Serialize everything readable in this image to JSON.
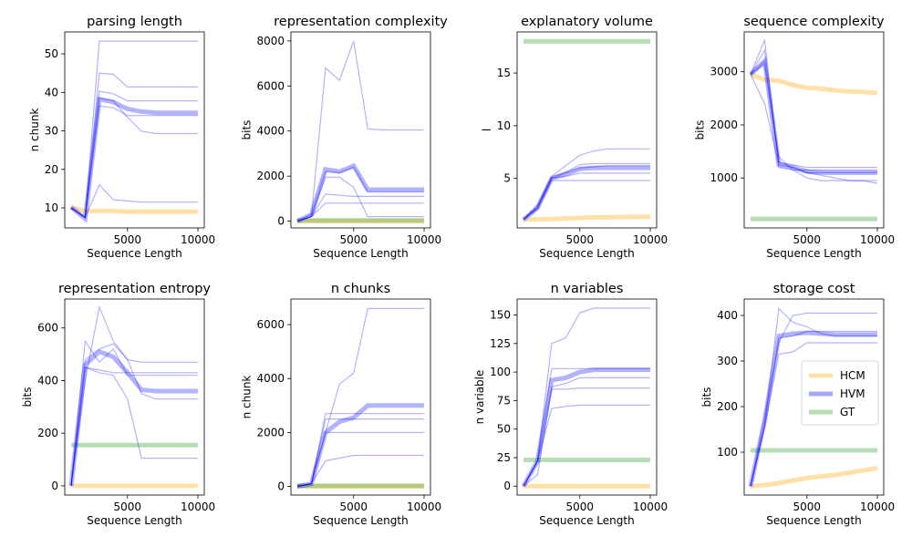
{
  "colors": {
    "HCM": "#FFA500",
    "HVM": "#0000FF",
    "GT": "#2CA02C"
  },
  "chart_data": [
    {
      "type": "line",
      "title": "parsing length",
      "xlabel": "Sequence Length",
      "ylabel": "n chunk",
      "xlim": [
        550,
        10450
      ],
      "ylim": [
        4.8,
        55.7
      ],
      "xticks": [
        5000,
        10000
      ],
      "yticks": [
        10,
        20,
        30,
        40,
        50
      ],
      "x": [
        1000,
        2000,
        3000,
        4000,
        5000,
        6000,
        7000,
        8000,
        9000,
        10000
      ],
      "runs": [
        [
          10,
          7.5,
          53.3,
          53.3,
          53.3,
          53.3,
          53.3,
          53.3,
          53.3,
          53.3
        ],
        [
          10,
          7.5,
          45,
          44.7,
          41.4,
          41.4,
          41.4,
          41.4,
          41.4,
          41.4
        ],
        [
          10,
          7.5,
          40.3,
          39.6,
          37.8,
          37.8,
          37.8,
          37.8,
          37.8,
          37.8
        ],
        [
          10,
          7.5,
          38.5,
          37.8,
          33.5,
          29.9,
          29.3,
          29.3,
          29.3,
          29.3
        ],
        [
          10,
          7.5,
          16,
          12.1,
          11.8,
          11.5,
          11.5,
          11.5,
          11.5,
          11.5
        ],
        [
          10,
          7.5,
          36.5,
          36,
          34,
          34,
          34,
          34,
          34,
          34
        ]
      ],
      "series": [
        {
          "name": "HVM",
          "values": [
            10.2,
            7.2,
            38.2,
            37.5,
            35.7,
            35,
            34.7,
            34.7,
            34.7,
            34.7
          ]
        },
        {
          "name": "HCM",
          "values": [
            10,
            9.2,
            9.2,
            9.2,
            9,
            9,
            9,
            9,
            9,
            9
          ]
        }
      ]
    },
    {
      "type": "line",
      "title": "representation complexity",
      "xlabel": "Sequence Length",
      "ylabel": "bits",
      "xlim": [
        550,
        10450
      ],
      "ylim": [
        -300,
        8400
      ],
      "xticks": [
        5000,
        10000
      ],
      "yticks": [
        0,
        2000,
        4000,
        6000,
        8000
      ],
      "x": [
        1000,
        2000,
        3000,
        4000,
        5000,
        6000,
        7000,
        8000,
        9000,
        10000
      ],
      "runs": [
        [
          0,
          200,
          6800,
          6250,
          8000,
          4100,
          4050,
          4050,
          4050,
          4050
        ],
        [
          0,
          200,
          1950,
          1950,
          1500,
          200,
          200,
          200,
          200,
          200
        ],
        [
          0,
          200,
          1200,
          1150,
          1100,
          1100,
          1100,
          1100,
          1100,
          1100
        ],
        [
          0,
          200,
          800,
          800,
          800,
          800,
          800,
          800,
          800,
          800
        ],
        [
          0,
          300,
          2200,
          2150,
          2400,
          1300,
          1300,
          1300,
          1300,
          1300
        ]
      ],
      "series": [
        {
          "name": "HVM",
          "values": [
            0,
            300,
            2300,
            2200,
            2450,
            1400,
            1400,
            1400,
            1400,
            1400
          ]
        },
        {
          "name": "HCM",
          "values": [
            0,
            0,
            0,
            0,
            0,
            0,
            0,
            0,
            0,
            0
          ]
        },
        {
          "name": "GT",
          "values": [
            30,
            30,
            30,
            30,
            30,
            30,
            30,
            30,
            30,
            30
          ]
        }
      ]
    },
    {
      "type": "line",
      "title": "explanatory volume",
      "xlabel": "Sequence Length",
      "ylabel": "l",
      "xlim": [
        550,
        10450
      ],
      "ylim": [
        0.3,
        18.9
      ],
      "xticks": [
        5000,
        10000
      ],
      "yticks": [
        5,
        10,
        15
      ],
      "x": [
        1000,
        2000,
        3000,
        4000,
        5000,
        6000,
        7000,
        8000,
        9000,
        10000
      ],
      "runs": [
        [
          1.1,
          2.5,
          5.2,
          6.2,
          7.2,
          7.6,
          7.8,
          7.8,
          7.8,
          7.8
        ],
        [
          1.1,
          2.3,
          5.1,
          5.6,
          6.3,
          6.4,
          6.4,
          6.4,
          6.4,
          6.4
        ],
        [
          1.1,
          2.2,
          5,
          5.2,
          5.5,
          5.5,
          5.5,
          5.5,
          5.5,
          5.5
        ],
        [
          1.1,
          2.1,
          4.8,
          4.8,
          4.8,
          4.8,
          4.8,
          4.8,
          4.8,
          4.8
        ],
        [
          1.1,
          2.2,
          5,
          5.5,
          6,
          6.1,
          6.2,
          6.2,
          6.2,
          6.2
        ]
      ],
      "series": [
        {
          "name": "HVM",
          "values": [
            1.1,
            2.2,
            5,
            5.4,
            5.9,
            6,
            6,
            6,
            6,
            6
          ]
        },
        {
          "name": "HCM",
          "values": [
            1.1,
            1.1,
            1.15,
            1.2,
            1.25,
            1.3,
            1.32,
            1.34,
            1.35,
            1.36
          ]
        },
        {
          "name": "GT",
          "values": [
            18,
            18,
            18,
            18,
            18,
            18,
            18,
            18,
            18,
            18
          ]
        }
      ]
    },
    {
      "type": "line",
      "title": "sequence complexity",
      "xlabel": "Sequence Length",
      "ylabel": "bits",
      "xlim": [
        550,
        10450
      ],
      "ylim": [
        60,
        3750
      ],
      "xticks": [
        5000,
        10000
      ],
      "yticks": [
        1000,
        2000,
        3000
      ],
      "x": [
        1000,
        2000,
        3000,
        4000,
        5000,
        6000,
        7000,
        8000,
        9000,
        10000
      ],
      "runs": [
        [
          2950,
          3600,
          1200,
          1150,
          1000,
          950,
          950,
          950,
          950,
          950
        ],
        [
          2950,
          3400,
          1300,
          1250,
          1200,
          1200,
          1200,
          1200,
          1200,
          1200
        ],
        [
          2950,
          2400,
          1250,
          1200,
          1100,
          1050,
          1000,
          950,
          950,
          900
        ],
        [
          2950,
          3200,
          1400,
          1150,
          1150,
          1150,
          1150,
          1150,
          1150,
          1150
        ],
        [
          2950,
          3150,
          1300,
          1200,
          1100,
          1100,
          1100,
          1100,
          1100,
          1100
        ]
      ],
      "series": [
        {
          "name": "HVM",
          "values": [
            2950,
            3200,
            1250,
            1200,
            1120,
            1100,
            1100,
            1100,
            1100,
            1100
          ]
        },
        {
          "name": "HCM",
          "values": [
            2950,
            2850,
            2830,
            2750,
            2700,
            2680,
            2650,
            2630,
            2620,
            2600
          ]
        },
        {
          "name": "GT",
          "values": [
            230,
            230,
            230,
            230,
            230,
            230,
            230,
            230,
            230,
            230
          ]
        }
      ]
    },
    {
      "type": "line",
      "title": "representation entropy",
      "xlabel": "Sequence Length",
      "ylabel": "bits",
      "xlim": [
        550,
        10450
      ],
      "ylim": [
        -35,
        710
      ],
      "xticks": [
        5000,
        10000
      ],
      "yticks": [
        0,
        200,
        400,
        600
      ],
      "x": [
        1000,
        2000,
        3000,
        4000,
        5000,
        6000,
        7000,
        8000,
        9000,
        10000
      ],
      "runs": [
        [
          0,
          400,
          680,
          550,
          480,
          470,
          470,
          470,
          470,
          470
        ],
        [
          0,
          550,
          470,
          520,
          420,
          420,
          420,
          420,
          420,
          420
        ],
        [
          0,
          450,
          430,
          420,
          330,
          105,
          105,
          105,
          105,
          105
        ],
        [
          0,
          480,
          520,
          540,
          480,
          350,
          330,
          330,
          330,
          330
        ],
        [
          0,
          450,
          440,
          430,
          430,
          430,
          430,
          430,
          430,
          430
        ]
      ],
      "series": [
        {
          "name": "HVM",
          "values": [
            0,
            460,
            510,
            490,
            430,
            365,
            360,
            360,
            360,
            360
          ]
        },
        {
          "name": "HCM",
          "values": [
            0,
            0,
            0,
            0,
            0,
            0,
            0,
            0,
            0,
            0
          ]
        },
        {
          "name": "GT",
          "values": [
            155,
            155,
            155,
            155,
            155,
            155,
            155,
            155,
            155,
            155
          ]
        }
      ]
    },
    {
      "type": "line",
      "title": "n chunks",
      "xlabel": "Sequence Length",
      "ylabel": "n chunk",
      "xlim": [
        550,
        10450
      ],
      "ylim": [
        -320,
        6950
      ],
      "xticks": [
        5000,
        10000
      ],
      "yticks": [
        0,
        2000,
        4000,
        6000
      ],
      "x": [
        1000,
        2000,
        3000,
        4000,
        5000,
        6000,
        7000,
        8000,
        9000,
        10000
      ],
      "runs": [
        [
          0,
          100,
          2000,
          3800,
          4200,
          6600,
          6600,
          6600,
          6600,
          6600
        ],
        [
          0,
          100,
          2700,
          2700,
          2700,
          2700,
          2700,
          2700,
          2700,
          2700
        ],
        [
          0,
          100,
          2500,
          2500,
          2500,
          2500,
          2500,
          2500,
          2500,
          2500
        ],
        [
          0,
          100,
          2000,
          2000,
          2000,
          2000,
          2000,
          2000,
          2000,
          2000
        ],
        [
          0,
          100,
          950,
          1050,
          1150,
          1150,
          1150,
          1150,
          1150,
          1150
        ]
      ],
      "series": [
        {
          "name": "HVM",
          "values": [
            0,
            100,
            2000,
            2400,
            2550,
            3000,
            3000,
            3000,
            3000,
            3000
          ]
        },
        {
          "name": "HCM",
          "values": [
            0,
            0,
            0,
            0,
            0,
            0,
            0,
            0,
            0,
            0
          ]
        },
        {
          "name": "GT",
          "values": [
            20,
            20,
            20,
            20,
            20,
            20,
            20,
            20,
            20,
            20
          ]
        }
      ]
    },
    {
      "type": "line",
      "title": "n variables",
      "xlabel": "Sequence Length",
      "ylabel": "n variable",
      "xlim": [
        550,
        10450
      ],
      "ylim": [
        -7.8,
        164
      ],
      "xticks": [
        5000,
        10000
      ],
      "yticks": [
        0,
        25,
        50,
        75,
        100,
        125,
        150
      ],
      "x": [
        1000,
        2000,
        3000,
        4000,
        5000,
        6000,
        7000,
        8000,
        9000,
        10000
      ],
      "runs": [
        [
          0,
          22,
          125,
          130,
          152,
          156,
          156,
          156,
          156,
          156
        ],
        [
          0,
          22,
          103,
          103,
          103,
          103,
          103,
          103,
          103,
          103
        ],
        [
          0,
          22,
          87,
          90,
          95,
          95,
          95,
          95,
          95,
          95
        ],
        [
          0,
          22,
          68,
          70,
          71,
          71,
          71,
          71,
          71,
          71
        ],
        [
          0,
          10,
          85,
          85,
          86,
          86,
          86,
          86,
          86,
          86
        ]
      ],
      "series": [
        {
          "name": "HVM",
          "values": [
            0,
            22,
            93,
            95,
            100,
            102,
            102,
            102,
            102,
            102
          ]
        },
        {
          "name": "HCM",
          "values": [
            0,
            0,
            0,
            0,
            0,
            0,
            0,
            0,
            0,
            0
          ]
        },
        {
          "name": "GT",
          "values": [
            23,
            23,
            23,
            23,
            23,
            23,
            23,
            23,
            23,
            23
          ]
        }
      ]
    },
    {
      "type": "line",
      "title": "storage cost",
      "xlabel": "Sequence Length",
      "ylabel": "bits",
      "xlim": [
        550,
        10450
      ],
      "ylim": [
        6,
        436
      ],
      "xticks": [
        5000,
        10000
      ],
      "yticks": [
        100,
        200,
        300,
        400
      ],
      "legend": {
        "position": "right",
        "entries": [
          "HCM",
          "HVM",
          "GT"
        ]
      },
      "x": [
        1000,
        2000,
        3000,
        4000,
        5000,
        6000,
        7000,
        8000,
        9000,
        10000
      ],
      "runs": [
        [
          25,
          160,
          415,
          385,
          375,
          360,
          355,
          355,
          355,
          355
        ],
        [
          25,
          180,
          340,
          400,
          405,
          405,
          405,
          405,
          405,
          405
        ],
        [
          25,
          155,
          315,
          320,
          340,
          340,
          340,
          340,
          340,
          340
        ],
        [
          25,
          160,
          350,
          355,
          365,
          365,
          365,
          365,
          365,
          365
        ]
      ],
      "series": [
        {
          "name": "HVM",
          "values": [
            25,
            170,
            355,
            360,
            362,
            360,
            358,
            358,
            358,
            358
          ]
        },
        {
          "name": "HCM",
          "values": [
            25,
            28,
            32,
            38,
            43,
            47,
            50,
            55,
            60,
            65
          ]
        },
        {
          "name": "GT",
          "values": [
            104,
            104,
            104,
            104,
            104,
            104,
            104,
            104,
            104,
            104
          ]
        }
      ]
    }
  ]
}
